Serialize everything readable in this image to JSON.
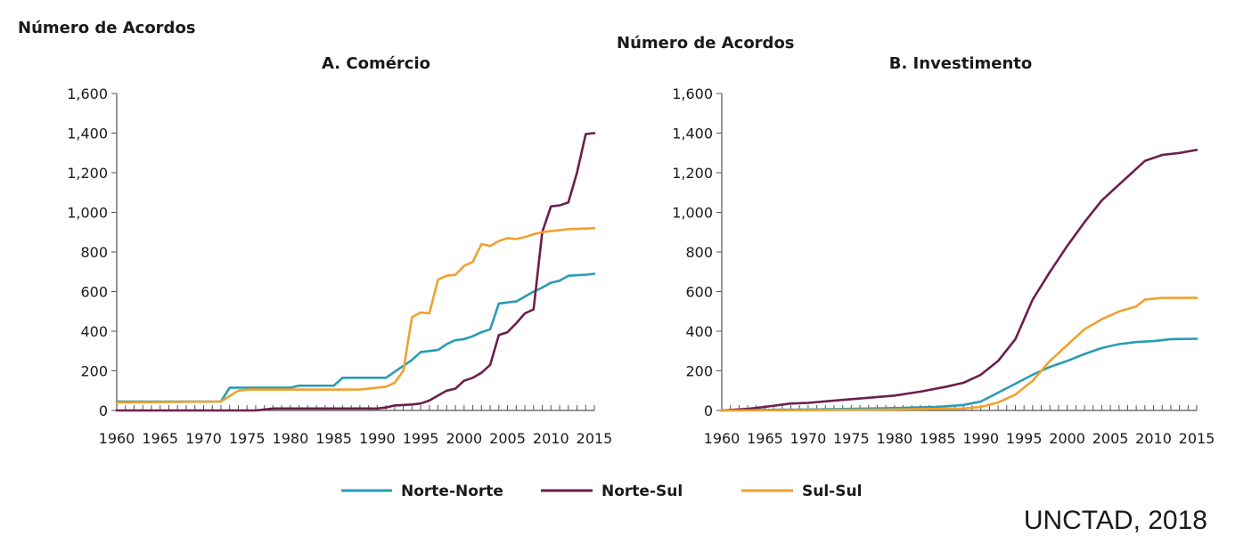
{
  "chart_data": [
    {
      "type": "line",
      "title": "A.  Comércio",
      "ylabel": "Número de Acordos",
      "xlabel": "",
      "xlim": [
        1960,
        2015
      ],
      "ylim": [
        0,
        1600
      ],
      "yticks": [
        0,
        200,
        400,
        600,
        800,
        1000,
        1200,
        1400,
        1600
      ],
      "ytick_labels": [
        "0",
        "200",
        "400",
        "600",
        "800",
        "1,000",
        "1,200",
        "1,400",
        "1,600"
      ],
      "xticks": [
        1960,
        1965,
        1970,
        1975,
        1980,
        1985,
        1990,
        1995,
        2000,
        2005,
        2010,
        2015
      ],
      "xtick_labels": [
        "1960",
        "1965",
        "1970",
        "1975",
        "1980",
        "1985",
        "1990",
        "1995",
        "2000",
        "2005",
        "2010",
        "2015"
      ],
      "grid": false,
      "legend": "bottom",
      "series": [
        {
          "name": "Norte-Norte",
          "color": "#2a9bb4",
          "points": [
            [
              1960,
              45
            ],
            [
              1972,
              45
            ],
            [
              1973,
              115
            ],
            [
              1980,
              115
            ],
            [
              1981,
              125
            ],
            [
              1985,
              125
            ],
            [
              1986,
              165
            ],
            [
              1991,
              165
            ],
            [
              1992,
              195
            ],
            [
              1993,
              225
            ],
            [
              1994,
              255
            ],
            [
              1995,
              295
            ],
            [
              1997,
              305
            ],
            [
              1998,
              335
            ],
            [
              1999,
              355
            ],
            [
              2000,
              360
            ],
            [
              2001,
              375
            ],
            [
              2002,
              395
            ],
            [
              2003,
              410
            ],
            [
              2004,
              540
            ],
            [
              2005,
              545
            ],
            [
              2006,
              550
            ],
            [
              2007,
              575
            ],
            [
              2008,
              600
            ],
            [
              2009,
              620
            ],
            [
              2010,
              645
            ],
            [
              2011,
              655
            ],
            [
              2012,
              680
            ],
            [
              2014,
              685
            ],
            [
              2015,
              690
            ]
          ]
        },
        {
          "name": "Norte-Sul",
          "color": "#6b1f4c",
          "points": [
            [
              1960,
              0
            ],
            [
              1976,
              0
            ],
            [
              1977,
              5
            ],
            [
              1978,
              10
            ],
            [
              1990,
              10
            ],
            [
              1991,
              15
            ],
            [
              1992,
              25
            ],
            [
              1994,
              30
            ],
            [
              1995,
              35
            ],
            [
              1996,
              50
            ],
            [
              1997,
              75
            ],
            [
              1998,
              100
            ],
            [
              1999,
              110
            ],
            [
              2000,
              150
            ],
            [
              2001,
              165
            ],
            [
              2002,
              190
            ],
            [
              2003,
              230
            ],
            [
              2004,
              380
            ],
            [
              2005,
              395
            ],
            [
              2006,
              440
            ],
            [
              2007,
              490
            ],
            [
              2008,
              510
            ],
            [
              2009,
              900
            ],
            [
              2010,
              1030
            ],
            [
              2011,
              1035
            ],
            [
              2012,
              1050
            ],
            [
              2013,
              1200
            ],
            [
              2014,
              1395
            ],
            [
              2015,
              1400
            ]
          ]
        },
        {
          "name": "Sul-Sul",
          "color": "#f0a12e",
          "points": [
            [
              1960,
              40
            ],
            [
              1972,
              45
            ],
            [
              1974,
              100
            ],
            [
              1975,
              105
            ],
            [
              1988,
              105
            ],
            [
              1991,
              120
            ],
            [
              1992,
              140
            ],
            [
              1993,
              200
            ],
            [
              1994,
              470
            ],
            [
              1995,
              495
            ],
            [
              1996,
              490
            ],
            [
              1997,
              660
            ],
            [
              1998,
              680
            ],
            [
              1999,
              685
            ],
            [
              2000,
              730
            ],
            [
              2001,
              750
            ],
            [
              2002,
              840
            ],
            [
              2003,
              830
            ],
            [
              2004,
              855
            ],
            [
              2005,
              870
            ],
            [
              2006,
              865
            ],
            [
              2007,
              875
            ],
            [
              2008,
              890
            ],
            [
              2009,
              900
            ],
            [
              2010,
              905
            ],
            [
              2012,
              915
            ],
            [
              2015,
              920
            ]
          ]
        }
      ]
    },
    {
      "type": "line",
      "title": "B. Investimento",
      "ylabel": "Número de Acordos",
      "xlabel": "",
      "xlim": [
        1960,
        2015
      ],
      "ylim": [
        0,
        1600
      ],
      "yticks": [
        0,
        200,
        400,
        600,
        800,
        1000,
        1200,
        1400,
        1600
      ],
      "ytick_labels": [
        "0",
        "200",
        "400",
        "600",
        "800",
        "1,000",
        "1,200",
        "1,400",
        "1,600"
      ],
      "xticks": [
        1960,
        1965,
        1970,
        1975,
        1980,
        1985,
        1990,
        1995,
        2000,
        2005,
        2010,
        2015
      ],
      "xtick_labels": [
        "1960",
        "1965",
        "1970",
        "1975",
        "1980",
        "1985",
        "1990",
        "1995",
        "2000",
        "2005",
        "2010",
        "2015"
      ],
      "grid": false,
      "legend": "bottom",
      "series": [
        {
          "name": "Norte-Norte",
          "color": "#2a9bb4",
          "points": [
            [
              1960,
              0
            ],
            [
              1965,
              3
            ],
            [
              1970,
              5
            ],
            [
              1975,
              8
            ],
            [
              1980,
              12
            ],
            [
              1985,
              18
            ],
            [
              1988,
              28
            ],
            [
              1990,
              45
            ],
            [
              1992,
              90
            ],
            [
              1994,
              135
            ],
            [
              1996,
              180
            ],
            [
              1998,
              220
            ],
            [
              2000,
              250
            ],
            [
              2002,
              285
            ],
            [
              2004,
              315
            ],
            [
              2006,
              335
            ],
            [
              2008,
              345
            ],
            [
              2010,
              350
            ],
            [
              2012,
              360
            ],
            [
              2015,
              362
            ]
          ]
        },
        {
          "name": "Norte-Sul",
          "color": "#6b1f4c",
          "points": [
            [
              1960,
              0
            ],
            [
              1963,
              8
            ],
            [
              1965,
              18
            ],
            [
              1968,
              35
            ],
            [
              1970,
              38
            ],
            [
              1973,
              50
            ],
            [
              1976,
              60
            ],
            [
              1980,
              75
            ],
            [
              1983,
              95
            ],
            [
              1986,
              120
            ],
            [
              1988,
              140
            ],
            [
              1990,
              180
            ],
            [
              1992,
              250
            ],
            [
              1994,
              360
            ],
            [
              1996,
              560
            ],
            [
              1998,
              700
            ],
            [
              2000,
              830
            ],
            [
              2002,
              950
            ],
            [
              2004,
              1060
            ],
            [
              2006,
              1140
            ],
            [
              2008,
              1220
            ],
            [
              2009,
              1260
            ],
            [
              2011,
              1290
            ],
            [
              2013,
              1300
            ],
            [
              2015,
              1315
            ]
          ]
        },
        {
          "name": "Sul-Sul",
          "color": "#f0a12e",
          "points": [
            [
              1960,
              0
            ],
            [
              1970,
              2
            ],
            [
              1980,
              5
            ],
            [
              1988,
              10
            ],
            [
              1990,
              18
            ],
            [
              1992,
              40
            ],
            [
              1994,
              80
            ],
            [
              1996,
              150
            ],
            [
              1998,
              250
            ],
            [
              2000,
              330
            ],
            [
              2002,
              410
            ],
            [
              2004,
              460
            ],
            [
              2006,
              500
            ],
            [
              2008,
              525
            ],
            [
              2009,
              560
            ],
            [
              2011,
              568
            ],
            [
              2015,
              568
            ]
          ]
        }
      ]
    }
  ],
  "legend": {
    "items": [
      {
        "label": "Norte-Norte",
        "color": "#2a9bb4"
      },
      {
        "label": "Norte-Sul",
        "color": "#6b1f4c"
      },
      {
        "label": "Sul-Sul",
        "color": "#f0a12e"
      }
    ]
  },
  "source": "UNCTAD, 2018"
}
